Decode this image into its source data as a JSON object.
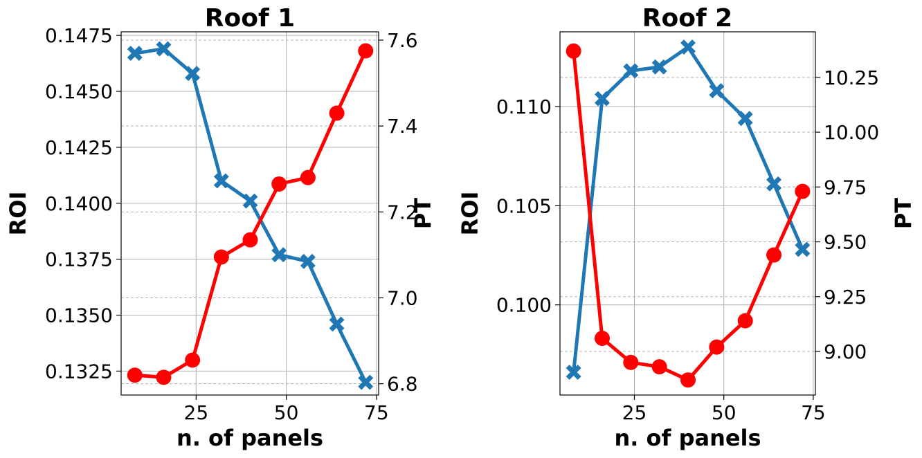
{
  "colors": {
    "roi": "#1f77b4",
    "pt": "#ff0000",
    "grid": "#b0b0b0"
  },
  "chart_data": [
    {
      "type": "line",
      "title": "Roof 1",
      "xlabel": "n. of panels",
      "ylabel": "ROI",
      "y2label": "PT",
      "xlim": [
        4.2,
        75.6
      ],
      "ylim": [
        0.13143,
        0.14766
      ],
      "y2lim": [
        6.7737,
        7.6193
      ],
      "x_ticks": [
        25,
        50,
        75
      ],
      "y_ticks": [
        0.1325,
        0.135,
        0.1375,
        0.14,
        0.1425,
        0.145,
        0.1475
      ],
      "y_tick_labels": [
        "0.1325",
        "0.1350",
        "0.1375",
        "0.1400",
        "0.1425",
        "0.1450",
        "0.1475"
      ],
      "y2_ticks": [
        6.8,
        7.0,
        7.2,
        7.4,
        7.6
      ],
      "y2_tick_labels": [
        "6.8",
        "7.0",
        "7.2",
        "7.4",
        "7.6"
      ],
      "grid": true,
      "series": [
        {
          "axis": "left",
          "marker": "x",
          "color": "#1f77b4",
          "x": [
            8,
            16,
            24,
            32,
            40,
            48,
            56,
            64,
            72
          ],
          "values": [
            0.1467,
            0.1469,
            0.1458,
            0.141,
            0.1401,
            0.1377,
            0.1374,
            0.1346,
            0.132
          ]
        },
        {
          "axis": "right",
          "marker": "o",
          "color": "#ff0000",
          "x": [
            8,
            16,
            24,
            32,
            40,
            48,
            56,
            64,
            72
          ],
          "values": [
            6.82,
            6.815,
            6.855,
            7.095,
            7.135,
            7.265,
            7.28,
            7.43,
            7.575
          ]
        }
      ]
    },
    {
      "type": "line",
      "title": "Roof 2",
      "xlabel": "n. of panels",
      "ylabel": "ROI",
      "y2label": "PT",
      "xlim": [
        4.2,
        75.6
      ],
      "ylim": [
        0.09545,
        0.11377
      ],
      "y2lim": [
        8.8012,
        10.4577
      ],
      "x_ticks": [
        25,
        50,
        75
      ],
      "y_ticks": [
        0.1,
        0.105,
        0.11
      ],
      "y_tick_labels": [
        "0.100",
        "0.105",
        "0.110"
      ],
      "y2_ticks": [
        9.0,
        9.25,
        9.5,
        9.75,
        10.0,
        10.25
      ],
      "y2_tick_labels": [
        "9.00",
        "9.25",
        "9.50",
        "9.75",
        "10.00",
        "10.25"
      ],
      "grid": true,
      "series": [
        {
          "axis": "left",
          "marker": "x",
          "color": "#1f77b4",
          "x": [
            8,
            16,
            24,
            32,
            40,
            48,
            56,
            64,
            72
          ],
          "values": [
            0.0966,
            0.1104,
            0.1118,
            0.112,
            0.113,
            0.1108,
            0.1094,
            0.1061,
            0.1028
          ]
        },
        {
          "axis": "right",
          "marker": "o",
          "color": "#ff0000",
          "x": [
            8,
            16,
            24,
            32,
            40,
            48,
            56,
            64,
            72
          ],
          "values": [
            10.37,
            9.06,
            8.95,
            8.93,
            8.87,
            9.02,
            9.14,
            9.44,
            9.73
          ]
        }
      ]
    }
  ]
}
